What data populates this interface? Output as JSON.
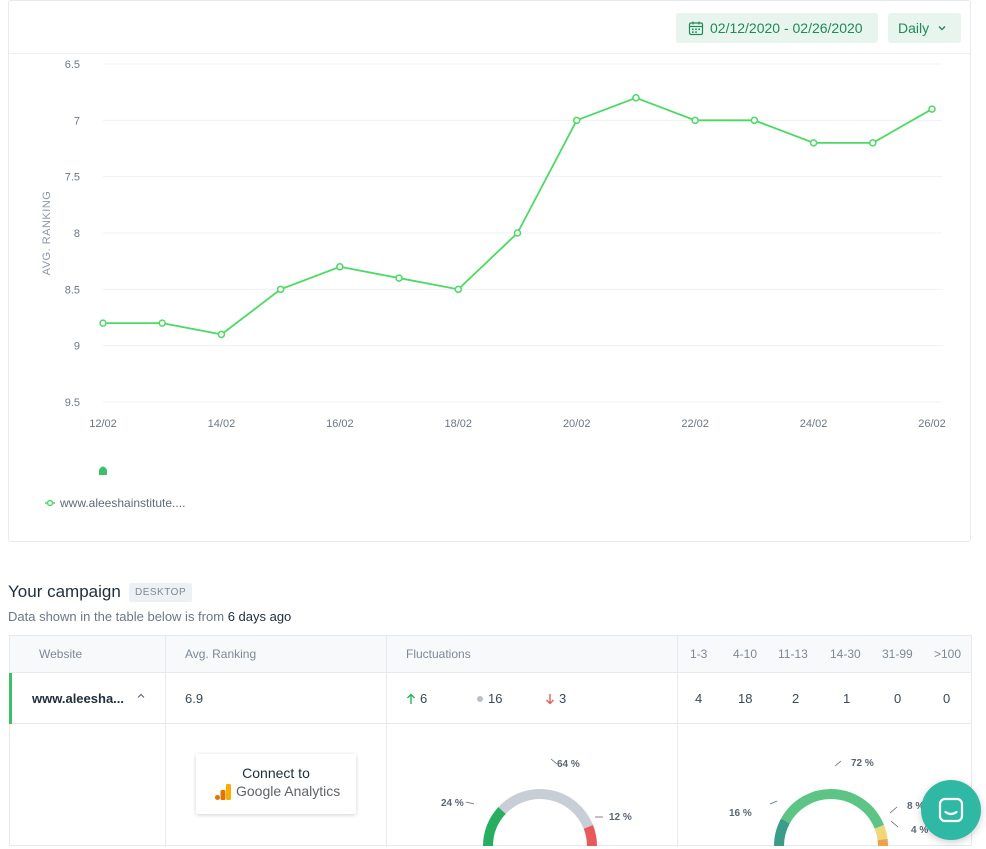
{
  "toolbar": {
    "date_range": "02/12/2020 - 02/26/2020",
    "interval": "Daily"
  },
  "chart_data": {
    "type": "line",
    "ylabel": "AVG. RANKING",
    "xlabel": "",
    "title": "",
    "y_inverted": true,
    "ylim": [
      6.5,
      9.5
    ],
    "y_ticks": [
      "6.5",
      "7",
      "7.5",
      "8",
      "8.5",
      "9",
      "9.5"
    ],
    "x_ticks": [
      "12/02",
      "14/02",
      "16/02",
      "18/02",
      "20/02",
      "22/02",
      "24/02",
      "26/02"
    ],
    "x": [
      "12/02",
      "13/02",
      "14/02",
      "15/02",
      "16/02",
      "17/02",
      "18/02",
      "19/02",
      "20/02",
      "21/02",
      "22/02",
      "23/02",
      "24/02",
      "25/02",
      "26/02"
    ],
    "series": [
      {
        "name": "www.aleeshainstitute....",
        "color": "#4cd964",
        "values": [
          8.8,
          8.8,
          8.9,
          8.5,
          8.3,
          8.4,
          8.5,
          8.0,
          7.0,
          6.8,
          7.0,
          7.0,
          7.2,
          7.2,
          6.9
        ]
      }
    ],
    "grid": true,
    "legend": "bottom-left"
  },
  "campaign": {
    "title": "Your campaign",
    "device_badge": "DESKTOP",
    "note_prefix": "Data shown in the table below is from",
    "note_value": "6 days ago"
  },
  "table": {
    "headers": {
      "website": "Website",
      "avg_ranking": "Avg. Ranking",
      "fluctuations": "Fluctuations",
      "r1": "1-3",
      "r2": "4-10",
      "r3": "11-13",
      "r4": "14-30",
      "r5": "31-99",
      "r6": ">100"
    },
    "row": {
      "website": "www.aleesha...",
      "avg_ranking": "6.9",
      "up": "6",
      "neutral": "16",
      "down": "3",
      "r1": "4",
      "r2": "18",
      "r3": "2",
      "r4": "1",
      "r5": "0",
      "r6": "0"
    },
    "connect": {
      "line1": "Connect to",
      "line2": "Google Analytics"
    },
    "fluct_gauge": {
      "labels": {
        "up": "24 %",
        "neutral": "64 %",
        "down": "12 %"
      },
      "values": {
        "up": 24,
        "neutral": 64,
        "down": 12
      },
      "colors": {
        "up": "#27ae60",
        "neutral": "#c8ced6",
        "down": "#e85a5a"
      }
    },
    "rank_gauge": {
      "labels": {
        "a": "16 %",
        "b": "72 %",
        "c": "8 %",
        "d": "4 %"
      },
      "values": {
        "a": 16,
        "b": 72,
        "c": 8,
        "d": 4
      },
      "colors": {
        "a": "#3c9c8a",
        "b": "#5cc485",
        "c": "#f0d77a",
        "d": "#f0a04b"
      }
    }
  },
  "icons": {
    "calendar": "calendar-icon",
    "chevron": "chevron-down-icon",
    "chat": "chat-icon"
  }
}
